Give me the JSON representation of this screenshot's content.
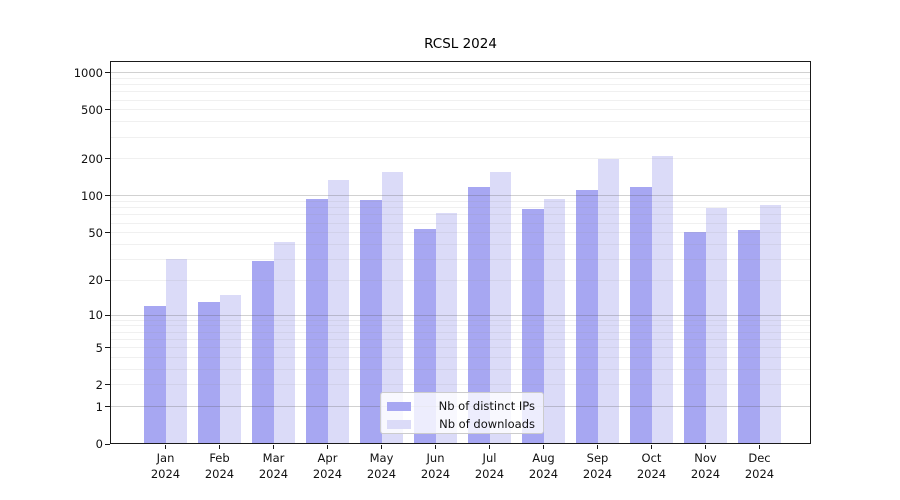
{
  "title": "RCSL 2024",
  "chart_data": {
    "type": "bar",
    "title": "RCSL 2024",
    "categories": [
      "Jan 2024",
      "Feb 2024",
      "Mar 2024",
      "Apr 2024",
      "May 2024",
      "Jun 2024",
      "Jul 2024",
      "Aug 2024",
      "Sep 2024",
      "Oct 2024",
      "Nov 2024",
      "Dec 2024"
    ],
    "x": {
      "months": [
        "Jan",
        "Feb",
        "Mar",
        "Apr",
        "May",
        "Jun",
        "Jul",
        "Aug",
        "Sep",
        "Oct",
        "Nov",
        "Dec"
      ],
      "year": "2024"
    },
    "series": [
      {
        "name": "Nb of distinct IPs",
        "color": "#a7a7f2",
        "values": [
          12,
          13,
          29,
          95,
          92,
          54,
          118,
          78,
          111,
          119,
          51,
          53
        ]
      },
      {
        "name": "Nb of downloads",
        "color": "#dbdbf8",
        "values": [
          30,
          15,
          42,
          135,
          157,
          73,
          158,
          95,
          198,
          210,
          79,
          85
        ]
      }
    ],
    "yscale": "log1p",
    "ylim": [
      0,
      1242
    ],
    "yticks": [
      0,
      1,
      2,
      5,
      10,
      20,
      50,
      100,
      200,
      500,
      1000
    ],
    "ytick_labels": [
      "0",
      "1",
      "2",
      "5",
      "10",
      "20",
      "50",
      "100",
      "200",
      "500",
      "1000"
    ],
    "y_major_gridlines": [
      1,
      10,
      100,
      1000
    ],
    "grid": true,
    "legend_position": "lower center",
    "grid_major_color": "rgba(90,90,90,0.28)",
    "grid_minor_color": "rgba(150,150,150,0.14)"
  }
}
